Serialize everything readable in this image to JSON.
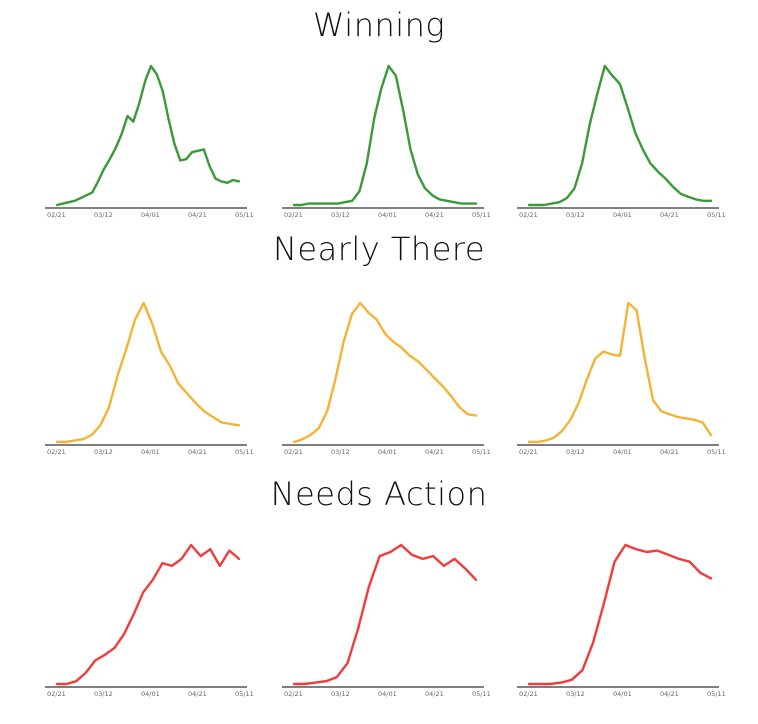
{
  "sections": [
    {
      "title": "Winning",
      "color": "#3a9a3a"
    },
    {
      "title": "Nearly There",
      "color": "#f5b335"
    },
    {
      "title": "Needs Action",
      "color": "#f23b3b"
    }
  ],
  "chart_data": [
    {
      "type": "line",
      "section": "Winning",
      "x_ticks": [
        "02/21",
        "03/12",
        "04/01",
        "04/21",
        "05/11"
      ],
      "ylim": [
        0,
        100
      ],
      "grid": false,
      "series": [
        {
          "color": "#3a9a3a",
          "values": [
            0,
            1,
            2,
            3,
            5,
            7,
            9,
            17,
            26,
            33,
            41,
            51,
            64,
            60,
            73,
            89,
            100,
            94,
            82,
            62,
            44,
            32,
            33,
            38,
            39,
            40,
            28,
            19,
            17,
            16,
            18,
            17
          ]
        }
      ]
    },
    {
      "type": "line",
      "section": "Winning",
      "x_ticks": [
        "02/21",
        "03/12",
        "04/01",
        "04/21",
        "05/11"
      ],
      "ylim": [
        0,
        100
      ],
      "grid": false,
      "series": [
        {
          "color": "#3a9a3a",
          "values": [
            0,
            0,
            1,
            1,
            1,
            1,
            1,
            2,
            3,
            10,
            30,
            62,
            84,
            100,
            93,
            68,
            40,
            22,
            12,
            7,
            4,
            3,
            2,
            1,
            1,
            1
          ]
        }
      ]
    },
    {
      "type": "line",
      "section": "Winning",
      "x_ticks": [
        "02/21",
        "03/12",
        "04/01",
        "04/21",
        "05/11"
      ],
      "ylim": [
        0,
        100
      ],
      "grid": false,
      "series": [
        {
          "color": "#3a9a3a",
          "values": [
            0,
            0,
            0,
            1,
            2,
            5,
            12,
            30,
            58,
            80,
            100,
            93,
            87,
            70,
            52,
            40,
            30,
            24,
            19,
            13,
            8,
            6,
            4,
            3,
            3
          ]
        }
      ]
    },
    {
      "type": "line",
      "section": "Nearly There",
      "x_ticks": [
        "02/21",
        "03/12",
        "04/01",
        "04/21",
        "05/11"
      ],
      "ylim": [
        0,
        100
      ],
      "grid": false,
      "series": [
        {
          "color": "#f5b335",
          "values": [
            0,
            0,
            1,
            2,
            5,
            12,
            25,
            48,
            67,
            88,
            100,
            85,
            65,
            55,
            42,
            35,
            28,
            22,
            18,
            14,
            13,
            12
          ]
        }
      ]
    },
    {
      "type": "line",
      "section": "Nearly There",
      "x_ticks": [
        "02/21",
        "03/12",
        "04/01",
        "04/21",
        "05/11"
      ],
      "ylim": [
        0,
        100
      ],
      "grid": false,
      "series": [
        {
          "color": "#f5b335",
          "values": [
            0,
            2,
            5,
            10,
            22,
            45,
            72,
            92,
            100,
            93,
            88,
            78,
            72,
            68,
            62,
            58,
            52,
            46,
            40,
            33,
            25,
            20,
            19
          ]
        }
      ]
    },
    {
      "type": "line",
      "section": "Nearly There",
      "x_ticks": [
        "02/21",
        "03/12",
        "04/01",
        "04/21",
        "05/11"
      ],
      "ylim": [
        0,
        100
      ],
      "grid": false,
      "series": [
        {
          "color": "#f5b335",
          "values": [
            0,
            0,
            1,
            3,
            8,
            16,
            28,
            45,
            60,
            65,
            63,
            62,
            100,
            95,
            60,
            30,
            22,
            20,
            18,
            17,
            16,
            14,
            5
          ]
        }
      ]
    },
    {
      "type": "line",
      "section": "Needs Action",
      "x_ticks": [
        "02/21",
        "03/12",
        "04/01",
        "04/21",
        "05/11"
      ],
      "ylim": [
        0,
        100
      ],
      "grid": false,
      "series": [
        {
          "color": "#f23b3b",
          "values": [
            0,
            0,
            2,
            8,
            17,
            21,
            26,
            36,
            50,
            66,
            75,
            87,
            85,
            90,
            100,
            92,
            97,
            85,
            96,
            90
          ]
        }
      ]
    },
    {
      "type": "line",
      "section": "Needs Action",
      "x_ticks": [
        "02/21",
        "03/12",
        "04/01",
        "04/21",
        "05/11"
      ],
      "ylim": [
        0,
        100
      ],
      "grid": false,
      "series": [
        {
          "color": "#f23b3b",
          "values": [
            0,
            0,
            1,
            2,
            5,
            15,
            40,
            70,
            92,
            95,
            100,
            93,
            90,
            92,
            85,
            90,
            83,
            75
          ]
        }
      ]
    },
    {
      "type": "line",
      "section": "Needs Action",
      "x_ticks": [
        "02/21",
        "03/12",
        "04/01",
        "04/21",
        "05/11"
      ],
      "ylim": [
        0,
        100
      ],
      "grid": false,
      "series": [
        {
          "color": "#f23b3b",
          "values": [
            0,
            0,
            0,
            1,
            3,
            10,
            30,
            58,
            88,
            100,
            97,
            95,
            96,
            93,
            90,
            88,
            80,
            76
          ]
        }
      ]
    }
  ]
}
